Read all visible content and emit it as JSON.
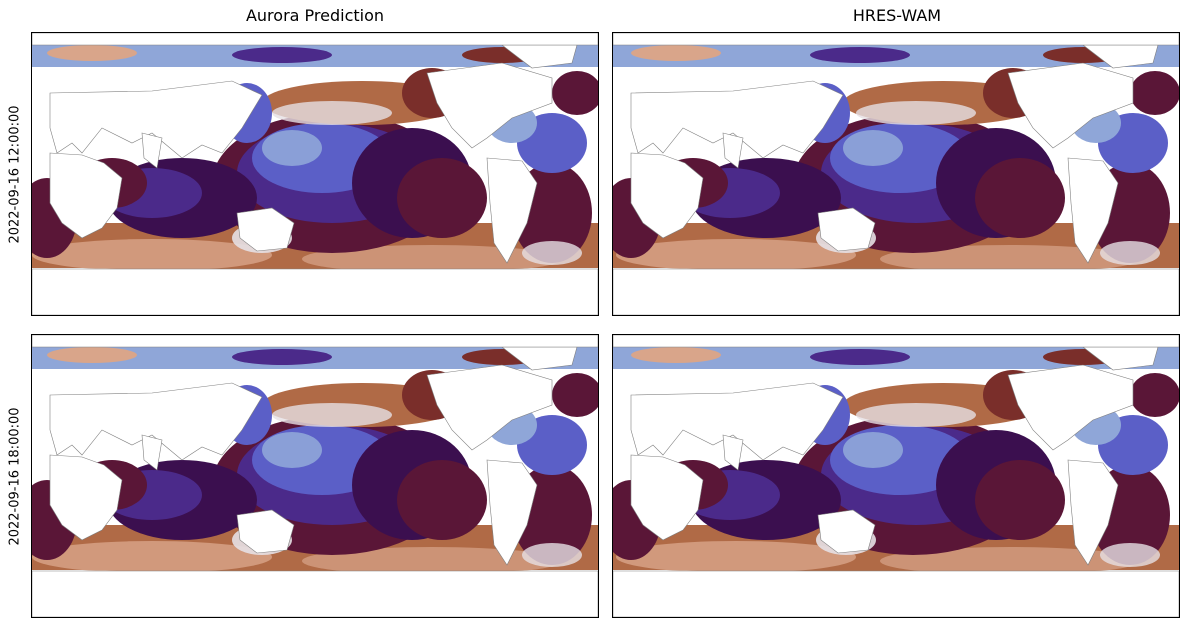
{
  "figure": {
    "columns": [
      {
        "title": "Aurora Prediction"
      },
      {
        "title": "HRES-WAM"
      }
    ],
    "rows": [
      {
        "label": "2022-09-16 12:00:00"
      },
      {
        "label": "2022-09-16 18:00:00"
      }
    ]
  },
  "colors": {
    "land": "#ffffff",
    "coastline": "#808080",
    "palette": [
      "#3b0f4f",
      "#4b2a8a",
      "#5b5fc7",
      "#8fa6d8",
      "#e6e0e4",
      "#d9a58a",
      "#b06a46",
      "#7a2e2a",
      "#5a1637"
    ]
  },
  "map": {
    "projection": "Plate Carree",
    "central_longitude": 180,
    "colormap": "twilight_shifted (cyclic)"
  }
}
